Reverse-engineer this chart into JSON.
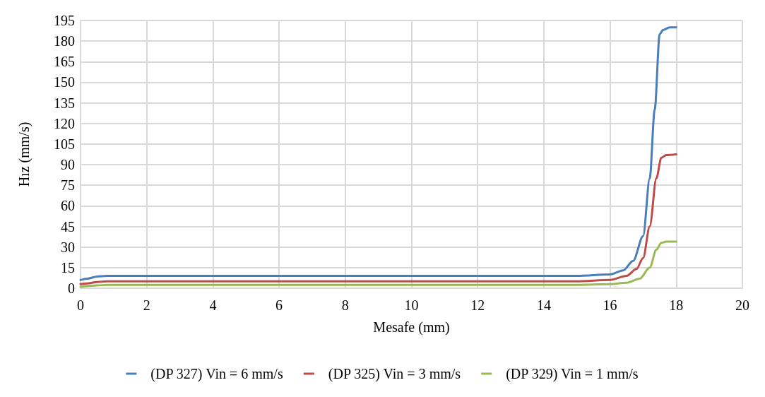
{
  "chart_data": {
    "type": "line",
    "xlabel": "Mesafe (mm)",
    "ylabel": "Hız (mm/s)",
    "xlim": [
      0,
      20
    ],
    "xticks": [
      0,
      2,
      4,
      6,
      8,
      10,
      12,
      14,
      16,
      18,
      20
    ],
    "ylim": [
      0,
      195
    ],
    "yticks": [
      0,
      15,
      30,
      45,
      60,
      75,
      90,
      105,
      120,
      135,
      150,
      165,
      180,
      195
    ],
    "grid": true,
    "legend": "bottom",
    "marker": "none",
    "line_style": "solid",
    "series": [
      {
        "name": "(DP 327) Vin = 6 mm/s",
        "color": "#4a7ebb",
        "x": [
          0,
          0.2,
          0.5,
          0.8,
          1.5,
          4,
          8,
          12,
          15,
          16,
          16.4,
          16.7,
          17,
          17.2,
          17.35,
          17.5,
          17.6,
          17.8,
          18
        ],
        "values": [
          6,
          7,
          8.5,
          9,
          9,
          9,
          9,
          9,
          9,
          10,
          13,
          20,
          38,
          80,
          130,
          185,
          188,
          190,
          190
        ]
      },
      {
        "name": "(DP 325) Vin = 3 mm/s",
        "color": "#be4b48",
        "x": [
          0,
          0.2,
          0.5,
          0.8,
          1.5,
          4,
          8,
          12,
          15,
          16,
          16.5,
          16.8,
          17,
          17.2,
          17.4,
          17.55,
          17.7,
          18
        ],
        "values": [
          3,
          3.5,
          4.5,
          5,
          5,
          5,
          5,
          5,
          5,
          6,
          9,
          14,
          22,
          45,
          80,
          95,
          97,
          97.5
        ]
      },
      {
        "name": "(DP 329) Vin = 1 mm/s",
        "color": "#98b954",
        "x": [
          0,
          0.2,
          0.5,
          0.8,
          1.5,
          4,
          8,
          12,
          15,
          16,
          16.5,
          16.9,
          17.2,
          17.4,
          17.55,
          17.7,
          18
        ],
        "values": [
          1,
          1.5,
          2,
          2.5,
          2.5,
          2.5,
          2.5,
          2.5,
          2.5,
          3,
          4,
          7,
          15,
          28,
          33,
          34,
          34
        ]
      }
    ]
  }
}
